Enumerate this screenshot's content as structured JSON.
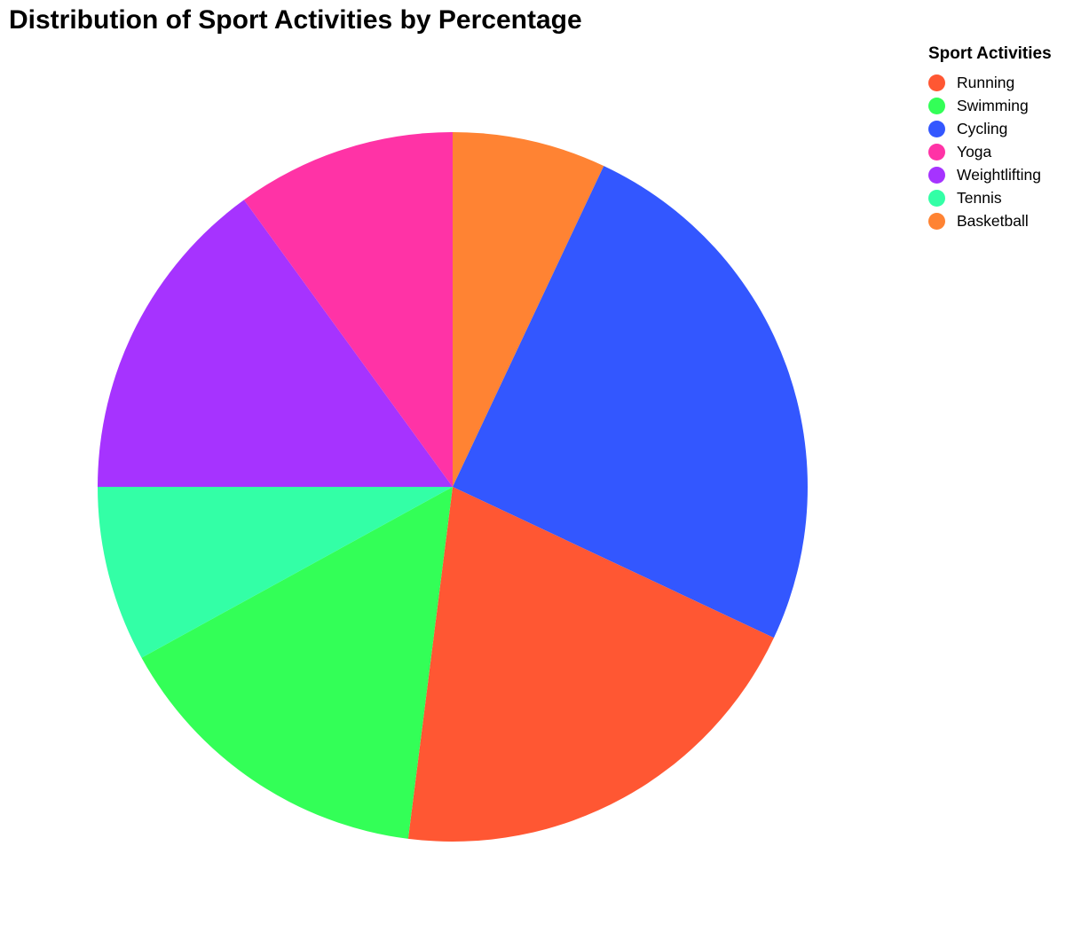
{
  "chart_data": {
    "type": "pie",
    "title": "Distribution of Sport Activities by Percentage",
    "legend_title": "Sport Activities",
    "legend_position": "top-right",
    "categories": [
      "Running",
      "Swimming",
      "Cycling",
      "Yoga",
      "Weightlifting",
      "Tennis",
      "Basketball"
    ],
    "values": [
      20,
      15,
      25,
      10,
      15,
      8,
      7
    ],
    "colors": [
      "#FF5733",
      "#33FF57",
      "#3357FF",
      "#FF33A6",
      "#A633FF",
      "#33FFA6",
      "#FF8333"
    ],
    "slice_order_clockwise_from_top": [
      "Basketball",
      "Cycling",
      "Running",
      "Swimming",
      "Tennis",
      "Weightlifting",
      "Yoga"
    ]
  }
}
